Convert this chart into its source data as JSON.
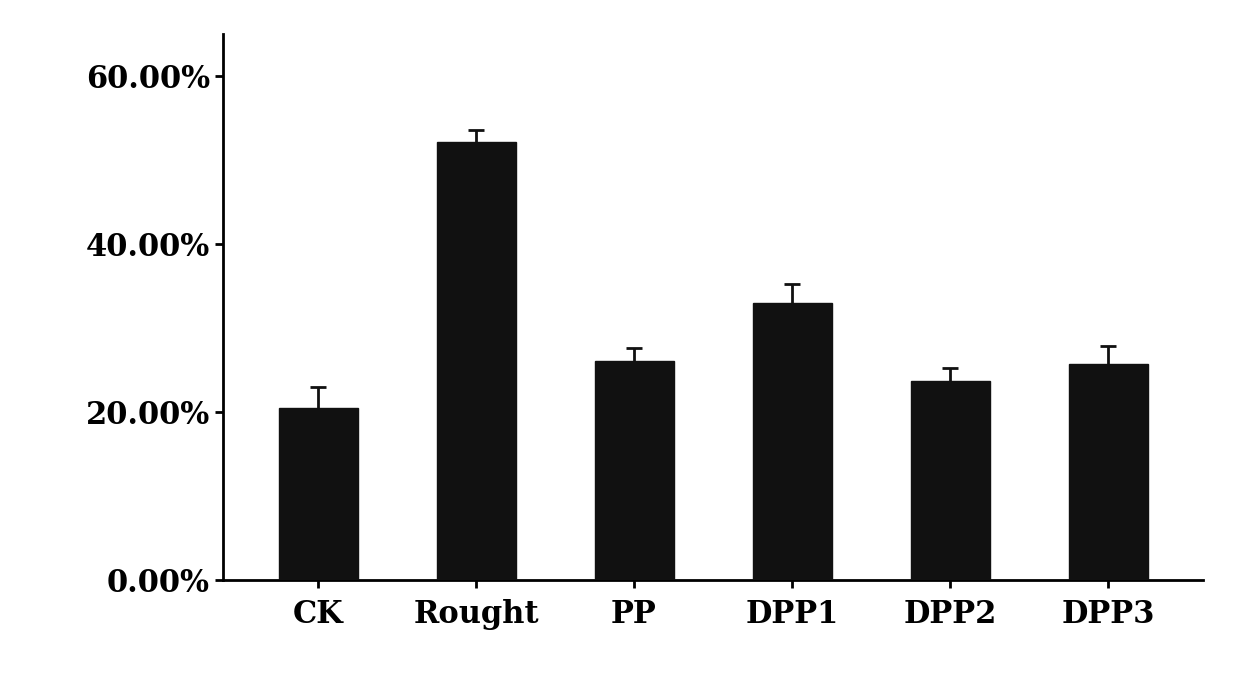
{
  "categories": [
    "CK",
    "Rought",
    "PP",
    "DPP1",
    "DPP2",
    "DPP3"
  ],
  "values": [
    0.205,
    0.521,
    0.261,
    0.33,
    0.237,
    0.257
  ],
  "errors": [
    0.025,
    0.015,
    0.015,
    0.022,
    0.015,
    0.022
  ],
  "bar_color": "#111111",
  "error_color": "#111111",
  "background_color": "#ffffff",
  "ylim": [
    0.0,
    0.65
  ],
  "yticks": [
    0.0,
    0.2,
    0.4,
    0.6
  ],
  "ytick_labels": [
    "0.00%",
    "20.00%",
    "40.00%",
    "60.00%"
  ],
  "bar_width": 0.5,
  "tick_fontsize": 22,
  "axis_linewidth": 2.0,
  "capsize": 6,
  "elinewidth": 2.0,
  "capthick": 2.0
}
